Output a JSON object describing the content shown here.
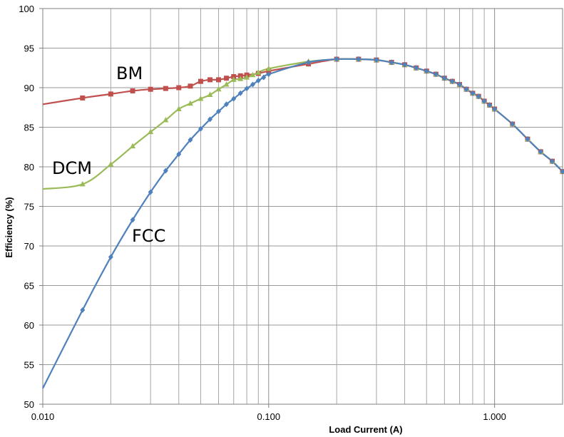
{
  "chart_data": {
    "type": "line",
    "xlabel": "Load Current (A)",
    "ylabel": "Efficiency (%)",
    "x_scale": "log",
    "xlim": [
      0.01,
      2.0
    ],
    "ylim": [
      50,
      100
    ],
    "x_ticks": [
      0.01,
      0.1,
      1.0
    ],
    "x_tick_labels": [
      "0.010",
      "0.100",
      "1.000"
    ],
    "y_ticks": [
      50,
      55,
      60,
      65,
      70,
      75,
      80,
      85,
      90,
      95,
      100
    ],
    "y_tick_labels": [
      "50",
      "55",
      "60",
      "65",
      "70",
      "75",
      "80",
      "85",
      "90",
      "95",
      "100"
    ],
    "grid": true,
    "series": [
      {
        "name": "BM",
        "color": "#c0504d",
        "marker": "square",
        "x": [
          0.01,
          0.015,
          0.02,
          0.025,
          0.03,
          0.035,
          0.04,
          0.045,
          0.05,
          0.055,
          0.06,
          0.065,
          0.07,
          0.075,
          0.08,
          0.09,
          0.1,
          0.15,
          0.2,
          0.25,
          0.3,
          0.35,
          0.4,
          0.45,
          0.5,
          0.55,
          0.6,
          0.65,
          0.7,
          0.75,
          0.8,
          0.85,
          0.9,
          0.95,
          1.0,
          1.2,
          1.4,
          1.6,
          1.8,
          2.0
        ],
        "y": [
          87.9,
          88.7,
          89.2,
          89.6,
          89.8,
          89.9,
          90.0,
          90.2,
          90.8,
          91.0,
          91.0,
          91.2,
          91.4,
          91.5,
          91.6,
          91.8,
          92.1,
          93.0,
          93.6,
          93.6,
          93.5,
          93.2,
          92.9,
          92.5,
          92.1,
          91.7,
          91.2,
          90.8,
          90.4,
          89.8,
          89.3,
          88.9,
          88.3,
          87.8,
          87.3,
          85.4,
          83.5,
          81.9,
          80.7,
          79.4
        ]
      },
      {
        "name": "DCM",
        "color": "#9bbb59",
        "marker": "triangle",
        "x": [
          0.01,
          0.015,
          0.02,
          0.025,
          0.03,
          0.035,
          0.04,
          0.045,
          0.05,
          0.055,
          0.06,
          0.065,
          0.07,
          0.075,
          0.08,
          0.085,
          0.09,
          0.1,
          0.15,
          0.2,
          0.25,
          0.3,
          0.35,
          0.4,
          0.45,
          0.5,
          0.55,
          0.6,
          0.65,
          0.7,
          0.75,
          0.8,
          0.85,
          0.9,
          0.95,
          1.0,
          1.2,
          1.4,
          1.6,
          1.8,
          2.0
        ],
        "y": [
          77.2,
          77.8,
          80.3,
          82.6,
          84.4,
          85.9,
          87.3,
          88.0,
          88.6,
          89.1,
          89.8,
          90.4,
          91.0,
          91.1,
          91.3,
          91.6,
          91.9,
          92.4,
          93.3,
          93.6,
          93.6,
          93.5,
          93.2,
          92.9,
          92.5,
          92.1,
          91.7,
          91.2,
          90.8,
          90.4,
          89.8,
          89.3,
          88.9,
          88.3,
          87.8,
          87.3,
          85.4,
          83.5,
          81.9,
          80.7,
          79.4
        ]
      },
      {
        "name": "FCC",
        "color": "#4f81bd",
        "marker": "diamond",
        "x": [
          0.01,
          0.015,
          0.02,
          0.025,
          0.03,
          0.035,
          0.04,
          0.045,
          0.05,
          0.055,
          0.06,
          0.065,
          0.07,
          0.075,
          0.08,
          0.085,
          0.09,
          0.095,
          0.1,
          0.15,
          0.2,
          0.25,
          0.3,
          0.35,
          0.4,
          0.45,
          0.5,
          0.55,
          0.6,
          0.65,
          0.7,
          0.75,
          0.8,
          0.85,
          0.9,
          0.95,
          1.0,
          1.2,
          1.4,
          1.6,
          1.8,
          2.0
        ],
        "y": [
          52.0,
          61.9,
          68.6,
          73.3,
          76.8,
          79.5,
          81.6,
          83.4,
          84.8,
          86.0,
          87.0,
          87.9,
          88.6,
          89.3,
          89.9,
          90.4,
          90.9,
          91.3,
          91.7,
          93.2,
          93.6,
          93.6,
          93.5,
          93.2,
          92.9,
          92.5,
          92.1,
          91.7,
          91.2,
          90.8,
          90.4,
          89.8,
          89.3,
          88.9,
          88.3,
          87.8,
          87.3,
          85.4,
          83.5,
          81.9,
          80.7,
          79.4
        ]
      }
    ],
    "annotations": [
      {
        "text": "BM",
        "series": "BM"
      },
      {
        "text": "DCM",
        "series": "DCM"
      },
      {
        "text": "FCC",
        "series": "FCC"
      }
    ]
  }
}
